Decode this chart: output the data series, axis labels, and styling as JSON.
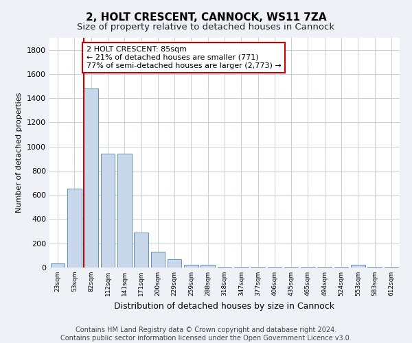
{
  "title": "2, HOLT CRESCENT, CANNOCK, WS11 7ZA",
  "subtitle": "Size of property relative to detached houses in Cannock",
  "xlabel": "Distribution of detached houses by size in Cannock",
  "ylabel": "Number of detached properties",
  "bar_labels": [
    "23sqm",
    "53sqm",
    "82sqm",
    "112sqm",
    "141sqm",
    "171sqm",
    "200sqm",
    "229sqm",
    "259sqm",
    "288sqm",
    "318sqm",
    "347sqm",
    "377sqm",
    "406sqm",
    "435sqm",
    "465sqm",
    "494sqm",
    "524sqm",
    "553sqm",
    "583sqm",
    "612sqm"
  ],
  "bar_values": [
    35,
    650,
    1480,
    940,
    940,
    290,
    130,
    70,
    25,
    20,
    5,
    5,
    5,
    5,
    5,
    5,
    5,
    5,
    20,
    5,
    5
  ],
  "bar_color": "#c8d8ea",
  "bar_edge_color": "#6090b8",
  "red_line_index": 2,
  "annotation_text": "2 HOLT CRESCENT: 85sqm\n← 21% of detached houses are smaller (771)\n77% of semi-detached houses are larger (2,773) →",
  "annotation_box_color": "white",
  "annotation_box_edge_color": "#cc0000",
  "red_line_color": "#cc0000",
  "ylim": [
    0,
    1900
  ],
  "yticks": [
    0,
    200,
    400,
    600,
    800,
    1000,
    1200,
    1400,
    1600,
    1800
  ],
  "footer_line1": "Contains HM Land Registry data © Crown copyright and database right 2024.",
  "footer_line2": "Contains public sector information licensed under the Open Government Licence v3.0.",
  "background_color": "#eef2f7",
  "plot_background_color": "#ffffff",
  "grid_color": "#c8d0dc",
  "title_fontsize": 11,
  "subtitle_fontsize": 9.5,
  "annotation_fontsize": 8,
  "ylabel_fontsize": 8,
  "xlabel_fontsize": 9,
  "footer_fontsize": 7
}
